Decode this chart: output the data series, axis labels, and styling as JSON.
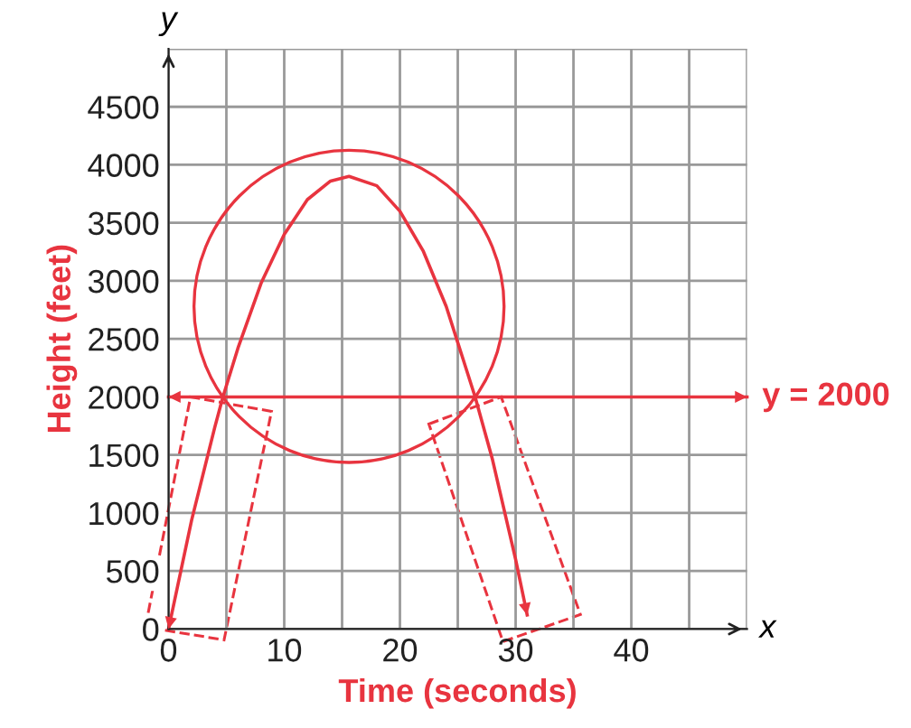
{
  "chart_data": {
    "type": "line",
    "xlabel": "Time (seconds)",
    "ylabel": "Height (feet)",
    "annotations": [
      "x",
      "y"
    ],
    "series": [
      {
        "color": "#e8343f",
        "x": [
          0,
          2,
          4,
          4.7,
          6,
          8,
          10,
          12,
          14,
          15.6,
          18,
          20,
          22,
          24,
          26.5,
          28,
          30,
          31
        ],
        "values": [
          0,
          940,
          1740,
          2000,
          2420,
          2980,
          3400,
          3700,
          3860,
          3900,
          3820,
          3600,
          3260,
          2780,
          2000,
          1460,
          600,
          120
        ]
      }
    ],
    "xlim": [
      0,
      50
    ],
    "ylim": [
      0,
      5000
    ],
    "xticks": [
      0,
      {
        "value": 5,
        "label": null
      },
      10,
      {
        "value": 15,
        "label": null
      },
      20,
      {
        "value": 25,
        "label": null
      },
      30,
      {
        "value": 35,
        "label": null
      },
      40,
      {
        "value": 45,
        "label": null
      }
    ],
    "yticks": [
      0,
      500,
      1000,
      1500,
      2000,
      2500,
      3000,
      3500,
      4000,
      4500
    ],
    "ref_lines": [
      {
        "axis": "y",
        "value": 2000,
        "label": "y = 2000",
        "color": "#e8343f"
      }
    ],
    "grid": true,
    "marker": "none",
    "line_style": "solid"
  }
}
